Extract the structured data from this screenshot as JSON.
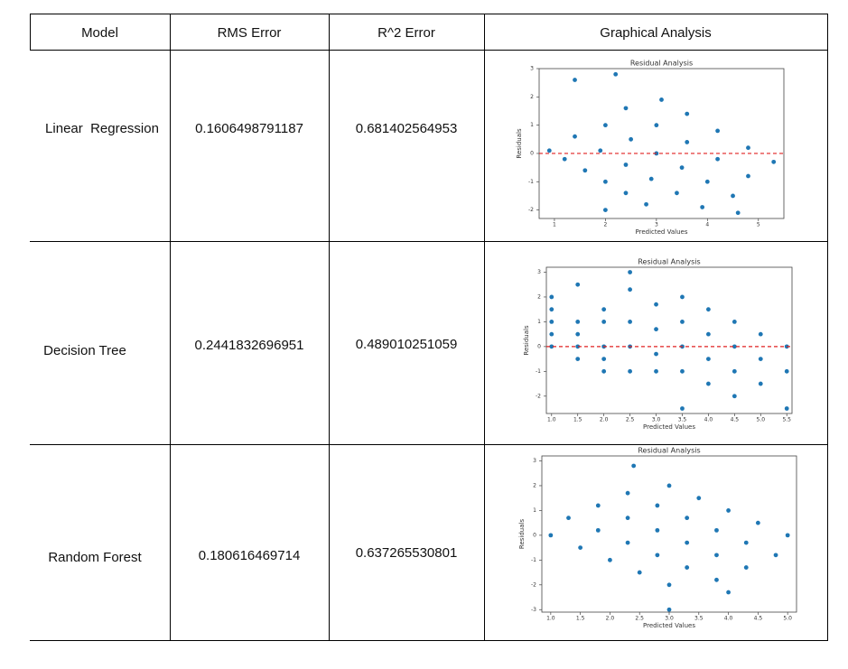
{
  "table": {
    "header": [
      "Model",
      "RMS Error",
      "R^2 Error",
      "Graphical Analysis"
    ],
    "rows": [
      {
        "model": "Linear  Regression",
        "rms": "0.1606498791187",
        "r2": "0.681402564953",
        "plot": {
          "title": "Residual Analysis",
          "xlabel": "Predicted Values",
          "ylabel": "Residuals",
          "xlim": [
            0.7,
            5.5
          ],
          "ylim": [
            -2.3,
            3.0
          ],
          "xticks": [
            1,
            2,
            3,
            4,
            5
          ],
          "yticks": [
            -2,
            -1,
            0,
            1,
            2,
            3
          ],
          "color": "#1f77b4",
          "zero_line": true,
          "zero_line_color": "#e02020",
          "x": [
            0.9,
            1.2,
            1.6,
            2.0,
            2.4,
            2.8,
            1.4,
            1.9,
            2.4,
            2.9,
            3.4,
            3.9,
            2.0,
            2.5,
            3.0,
            3.5,
            4.0,
            4.5,
            2.4,
            3.0,
            3.6,
            4.2,
            4.8,
            3.1,
            3.6,
            4.2,
            4.8,
            5.3,
            1.4,
            2.2,
            2.0,
            4.6
          ],
          "y": [
            0.1,
            -0.2,
            -0.6,
            -1.0,
            -1.4,
            -1.8,
            0.6,
            0.1,
            -0.4,
            -0.9,
            -1.4,
            -1.9,
            1.0,
            0.5,
            0.0,
            -0.5,
            -1.0,
            -1.5,
            1.6,
            1.0,
            0.4,
            -0.2,
            -0.8,
            1.9,
            1.4,
            0.8,
            0.2,
            -0.3,
            2.6,
            2.8,
            -2.0,
            -2.1
          ]
        }
      },
      {
        "model": "Decision Tree",
        "rms": "0.2441832696951",
        "r2": "0.489010251059",
        "plot": {
          "title": "Residual Analysis",
          "xlabel": "Predicted Values",
          "ylabel": "Residuals",
          "xlim": [
            0.9,
            5.6
          ],
          "ylim": [
            -2.7,
            3.2
          ],
          "xticks": [
            {
              "value": 1,
              "label": "1.0"
            },
            {
              "value": 1.5,
              "label": "1.5"
            },
            {
              "value": 2,
              "label": "2.0"
            },
            {
              "value": 2.5,
              "label": "2.5"
            },
            {
              "value": 3,
              "label": "3.0"
            },
            {
              "value": 3.5,
              "label": "3.5"
            },
            {
              "value": 4,
              "label": "4.0"
            },
            {
              "value": 4.5,
              "label": "4.5"
            },
            {
              "value": 5,
              "label": "5.0"
            },
            {
              "value": 5.5,
              "label": "5.5"
            }
          ],
          "yticks": [
            -2,
            -1,
            0,
            1,
            2,
            3
          ],
          "color": "#1f77b4",
          "zero_line": true,
          "zero_line_color": "#e02020",
          "x": [
            1.0,
            1.0,
            1.0,
            1.0,
            1.0,
            1.5,
            1.5,
            1.5,
            1.5,
            1.5,
            2.0,
            2.0,
            2.0,
            2.0,
            2.0,
            2.5,
            2.5,
            2.5,
            2.5,
            2.5,
            3.0,
            3.0,
            3.0,
            3.0,
            3.5,
            4.0,
            4.5,
            5.0,
            5.5,
            3.5,
            4.0,
            4.5,
            5.0,
            5.5,
            3.5,
            4.0,
            4.5,
            5.0,
            3.5,
            4.0,
            4.5,
            3.5,
            5.5
          ],
          "y": [
            2,
            1.5,
            1,
            0.5,
            0,
            2.5,
            1,
            0.5,
            0,
            -0.5,
            1.5,
            1,
            0,
            -0.5,
            -1,
            3,
            2.3,
            1,
            0,
            -1,
            1.7,
            0.7,
            -0.3,
            -1,
            2,
            1.5,
            1,
            0.5,
            0,
            1,
            0.5,
            0,
            -0.5,
            -1,
            0,
            -0.5,
            -1,
            -1.5,
            -1,
            -1.5,
            -2,
            -2.5,
            -2.5
          ]
        }
      },
      {
        "model": "Random Forest",
        "rms": "0.180616469714",
        "r2": "0.637265530801",
        "plot": {
          "title": "Residual Analysis",
          "xlabel": "Predicted Values",
          "ylabel": "Residuals",
          "xlim": [
            0.85,
            5.15
          ],
          "ylim": [
            -3.1,
            3.2
          ],
          "xticks": [
            {
              "value": 1,
              "label": "1.0"
            },
            {
              "value": 1.5,
              "label": "1.5"
            },
            {
              "value": 2,
              "label": "2.0"
            },
            {
              "value": 2.5,
              "label": "2.5"
            },
            {
              "value": 3,
              "label": "3.0"
            },
            {
              "value": 3.5,
              "label": "3.5"
            },
            {
              "value": 4,
              "label": "4.0"
            },
            {
              "value": 4.5,
              "label": "4.5"
            },
            {
              "value": 5,
              "label": "5.0"
            }
          ],
          "yticks": [
            -3,
            -2,
            -1,
            0,
            1,
            2,
            3
          ],
          "color": "#1f77b4",
          "zero_line": false,
          "x": [
            1.0,
            1.5,
            2.0,
            2.5,
            3.0,
            1.3,
            1.8,
            2.3,
            2.8,
            3.3,
            3.8,
            1.8,
            2.3,
            2.8,
            3.3,
            3.8,
            4.3,
            2.3,
            2.8,
            3.3,
            3.8,
            4.3,
            4.8,
            3.0,
            3.5,
            4.0,
            4.5,
            5.0,
            2.4,
            3.0,
            4.0
          ],
          "y": [
            0,
            -0.5,
            -1,
            -1.5,
            -2,
            0.7,
            0.2,
            -0.3,
            -0.8,
            -1.3,
            -1.8,
            1.2,
            0.7,
            0.2,
            -0.3,
            -0.8,
            -1.3,
            1.7,
            1.2,
            0.7,
            0.2,
            -0.3,
            -0.8,
            2,
            1.5,
            1,
            0.5,
            0,
            2.8,
            -3,
            -2.3
          ]
        }
      }
    ]
  }
}
